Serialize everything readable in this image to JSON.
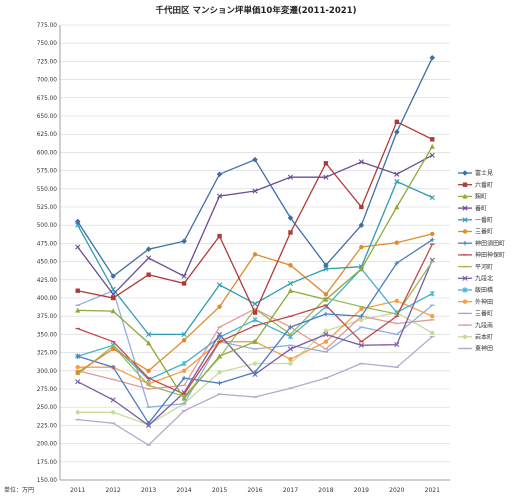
{
  "chart_data": {
    "type": "line",
    "title": "千代田区 マンション坪単価10年変遷(2011-2021)",
    "unit_label": "単位：万円",
    "x": [
      "2011",
      "2012",
      "2013",
      "2014",
      "2015",
      "2016",
      "2017",
      "2018",
      "2019",
      "2020",
      "2021"
    ],
    "ylim": [
      150,
      775
    ],
    "ytick_step": 25,
    "ytick_labels": [
      "150.00",
      "175.00",
      "200.00",
      "225.00",
      "250.00",
      "275.00",
      "300.00",
      "325.00",
      "350.00",
      "375.00",
      "400.00",
      "425.00",
      "450.00",
      "475.00",
      "500.00",
      "525.00",
      "550.00",
      "575.00",
      "600.00",
      "625.00",
      "650.00",
      "675.00",
      "700.00",
      "725.00",
      "750.00",
      "775.00"
    ],
    "grid": true,
    "legend_position": "right",
    "series": [
      {
        "name": "富士見",
        "color": "#3F6EA6",
        "marker": "diamond",
        "values": [
          505,
          430,
          467,
          478,
          570,
          590,
          510,
          445,
          500,
          628,
          730
        ]
      },
      {
        "name": "六番町",
        "color": "#B03A3A",
        "marker": "square",
        "values": [
          410,
          400,
          432,
          420,
          485,
          380,
          490,
          585,
          525,
          642,
          618
        ]
      },
      {
        "name": "麹町",
        "color": "#8DAA3E",
        "marker": "triangle",
        "values": [
          383,
          382,
          338,
          262,
          320,
          340,
          410,
          398,
          440,
          525,
          608
        ]
      },
      {
        "name": "番町",
        "color": "#6A4C93",
        "marker": "x",
        "values": [
          470,
          405,
          455,
          430,
          540,
          547,
          566,
          566,
          587,
          570,
          596
        ]
      },
      {
        "name": "一番町",
        "color": "#2E9BB5",
        "marker": "x",
        "values": [
          500,
          412,
          350,
          350,
          418,
          392,
          420,
          440,
          443,
          560,
          538
        ]
      },
      {
        "name": "三番町",
        "color": "#E08A2C",
        "marker": "circle",
        "values": [
          298,
          330,
          300,
          342,
          388,
          460,
          445,
          405,
          470,
          476,
          488
        ]
      },
      {
        "name": "神田須田町",
        "color": "#4F7CC0",
        "marker": "plus",
        "values": [
          320,
          305,
          228,
          290,
          283,
          298,
          360,
          378,
          375,
          448,
          480
        ]
      },
      {
        "name": "神田神保町",
        "color": "#C24A4A",
        "marker": "dash",
        "values": [
          358,
          340,
          290,
          268,
          340,
          362,
          375,
          390,
          340,
          375,
          474
        ]
      },
      {
        "name": "平河町",
        "color": "#9ABB59",
        "marker": "dash",
        "values": [
          295,
          334,
          280,
          265,
          318,
          385,
          350,
          400,
          388,
          378,
          450
        ]
      },
      {
        "name": "九段北",
        "color": "#7A5BA6",
        "marker": "x",
        "values": [
          285,
          260,
          225,
          270,
          350,
          295,
          330,
          350,
          335,
          336,
          452
        ]
      },
      {
        "name": "飯田橋",
        "color": "#45B0CF",
        "marker": "star",
        "values": [
          320,
          335,
          288,
          310,
          346,
          370,
          347,
          388,
          440,
          380,
          406
        ]
      },
      {
        "name": "外神田",
        "color": "#F59E45",
        "marker": "circle",
        "values": [
          305,
          305,
          282,
          300,
          340,
          340,
          316,
          340,
          385,
          396,
          375
        ]
      },
      {
        "name": "三番町",
        "color": "#8FB0DE",
        "marker": "dash",
        "values": [
          390,
          410,
          250,
          255,
          340,
          330,
          335,
          326,
          360,
          350,
          390
        ]
      },
      {
        "name": "九段南",
        "color": "#E39A9A",
        "marker": "dash",
        "values": [
          300,
          288,
          275,
          280,
          360,
          385,
          360,
          330,
          375,
          365,
          370
        ]
      },
      {
        "name": "岩本町",
        "color": "#C8DB9A",
        "marker": "circle",
        "values": [
          243,
          243,
          226,
          255,
          298,
          310,
          310,
          355,
          370,
          380,
          352
        ]
      },
      {
        "name": "東神田",
        "color": "#B5A8CC",
        "marker": "dash",
        "values": [
          233,
          228,
          198,
          245,
          268,
          264,
          276,
          290,
          310,
          305,
          347
        ]
      }
    ]
  }
}
